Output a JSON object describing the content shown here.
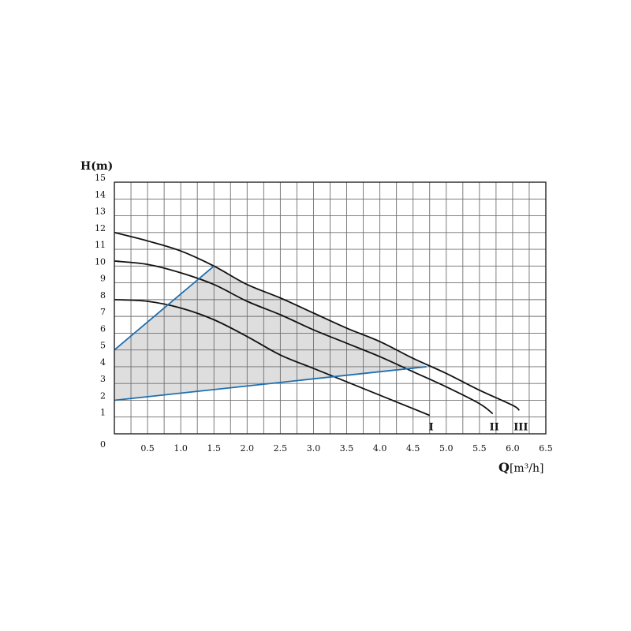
{
  "chart_data": {
    "type": "line",
    "ylabel": "H(m)",
    "xlabel_main": "Q",
    "xlabel_unit": "[m³/h]",
    "xlim": [
      0,
      6.5
    ],
    "ylim": [
      0,
      15
    ],
    "grid": true,
    "x_ticks": [
      "0.5",
      "1.0",
      "1.5",
      "2.0",
      "2.5",
      "3.0",
      "3.5",
      "4.0",
      "4.5",
      "5.0",
      "5.5",
      "6.0",
      "6.5"
    ],
    "x_tick_values": [
      0.5,
      1.0,
      1.5,
      2.0,
      2.5,
      3.0,
      3.5,
      4.0,
      4.5,
      5.0,
      5.5,
      6.0,
      6.5
    ],
    "y_ticks": [
      "0",
      "1",
      "2",
      "3",
      "4",
      "5",
      "6",
      "7",
      "8",
      "9",
      "10",
      "11",
      "12",
      "13",
      "14",
      "15"
    ],
    "y_tick_values": [
      0,
      1,
      2,
      3,
      4,
      5,
      6,
      7,
      8,
      9,
      10,
      11,
      12,
      13,
      14,
      15
    ],
    "series": [
      {
        "name": "I",
        "color": "#111111",
        "points": [
          [
            0,
            8.0
          ],
          [
            0.5,
            7.9
          ],
          [
            1.0,
            7.5
          ],
          [
            1.5,
            6.8
          ],
          [
            2.0,
            5.8
          ],
          [
            2.5,
            4.7
          ],
          [
            3.0,
            3.9
          ],
          [
            3.5,
            3.1
          ],
          [
            4.0,
            2.3
          ],
          [
            4.5,
            1.5
          ],
          [
            4.75,
            1.1
          ]
        ]
      },
      {
        "name": "II",
        "color": "#111111",
        "points": [
          [
            0,
            10.3
          ],
          [
            0.5,
            10.1
          ],
          [
            1.0,
            9.6
          ],
          [
            1.5,
            8.9
          ],
          [
            2.0,
            7.9
          ],
          [
            2.5,
            7.1
          ],
          [
            3.0,
            6.2
          ],
          [
            3.5,
            5.4
          ],
          [
            4.0,
            4.6
          ],
          [
            4.5,
            3.7
          ],
          [
            5.0,
            2.8
          ],
          [
            5.5,
            1.8
          ],
          [
            5.7,
            1.2
          ]
        ]
      },
      {
        "name": "III",
        "color": "#111111",
        "points": [
          [
            0,
            12.0
          ],
          [
            0.5,
            11.5
          ],
          [
            1.0,
            10.9
          ],
          [
            1.5,
            10.0
          ],
          [
            2.0,
            8.9
          ],
          [
            2.5,
            8.1
          ],
          [
            3.0,
            7.2
          ],
          [
            3.5,
            6.3
          ],
          [
            4.0,
            5.5
          ],
          [
            4.5,
            4.5
          ],
          [
            5.0,
            3.6
          ],
          [
            5.5,
            2.6
          ],
          [
            6.0,
            1.7
          ],
          [
            6.1,
            1.4
          ]
        ]
      }
    ],
    "operating_envelope": {
      "fill": "#dedede",
      "edge_color": "#1f6fae",
      "polygon": [
        [
          0,
          2.0
        ],
        [
          0,
          5.0
        ],
        [
          1.5,
          10.0
        ],
        [
          2.0,
          8.9
        ],
        [
          2.5,
          8.1
        ],
        [
          3.0,
          7.2
        ],
        [
          3.5,
          6.3
        ],
        [
          4.0,
          5.5
        ],
        [
          4.5,
          4.5
        ],
        [
          4.7,
          4.0
        ]
      ],
      "blue_lines": [
        [
          [
            0,
            5.0
          ],
          [
            1.5,
            10.0
          ]
        ],
        [
          [
            0,
            2.0
          ],
          [
            4.7,
            4.0
          ]
        ]
      ]
    }
  }
}
